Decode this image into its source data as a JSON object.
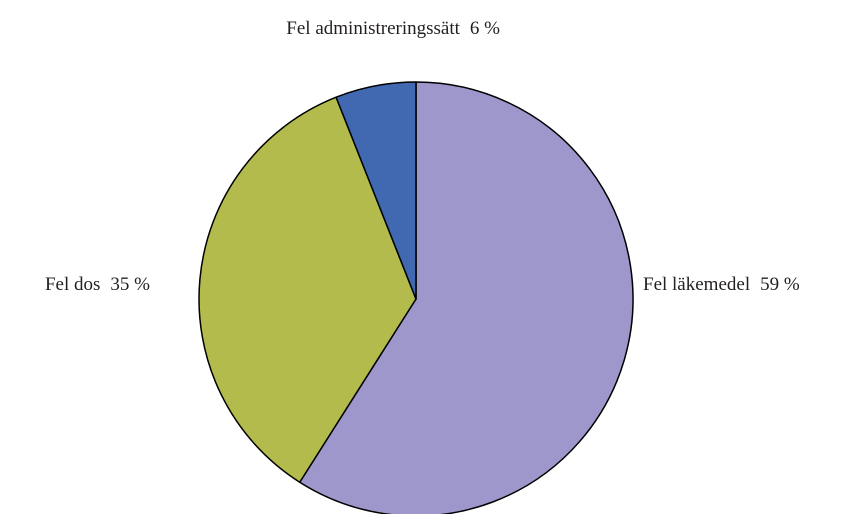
{
  "chart_data": {
    "type": "pie",
    "categories": [
      "Fel läkemedel",
      "Fel dos",
      "Fel administreringssätt"
    ],
    "values": [
      59,
      35,
      6
    ],
    "value_labels": [
      "59 %",
      "35 %",
      "6 %"
    ],
    "colors": [
      "#9e97cb",
      "#b2bb4b",
      "#4169b1"
    ]
  }
}
